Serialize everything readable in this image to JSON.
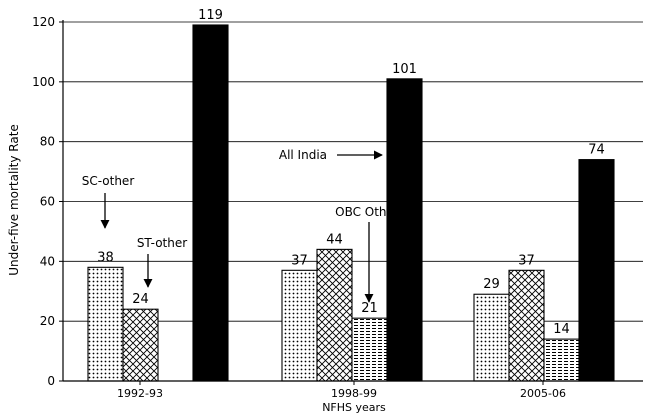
{
  "chart_data": {
    "type": "bar",
    "title": "",
    "xlabel": "NFHS years",
    "ylabel": "Under-five mortality Rate",
    "ylim": [
      0,
      120
    ],
    "yticks": [
      0,
      20,
      40,
      60,
      80,
      100,
      120
    ],
    "grid": true,
    "legend": "none",
    "categories": [
      "1992-93",
      "1998-99",
      "2005-06"
    ],
    "series": [
      {
        "name": "SC-other",
        "pattern": "dots",
        "values": [
          38,
          37,
          29
        ]
      },
      {
        "name": "ST-other",
        "pattern": "crosshatch",
        "values": [
          24,
          44,
          37
        ]
      },
      {
        "name": "OBC Other",
        "pattern": "horizontal-lines",
        "values": [
          null,
          21,
          14
        ]
      },
      {
        "name": "All India",
        "pattern": "solid-black",
        "values": [
          119,
          101,
          74
        ]
      }
    ],
    "annotations": [
      {
        "text": "SC-other",
        "series": 0,
        "category": 0
      },
      {
        "text": "ST-other",
        "series": 1,
        "category": 0
      },
      {
        "text": "OBC Other",
        "series": 2,
        "category": 1
      },
      {
        "text": "All India",
        "series": 3,
        "category": 1
      }
    ]
  }
}
